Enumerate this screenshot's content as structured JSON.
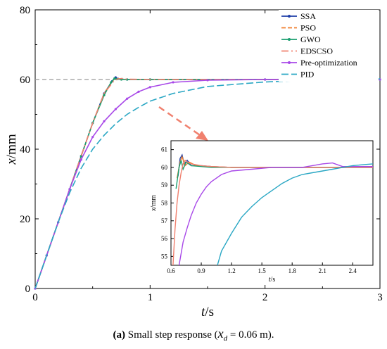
{
  "chart_data": [
    {
      "type": "line",
      "x_var": "t",
      "x_unit": "/s",
      "y_var": "x",
      "y_unit": "/mm",
      "xlim": [
        0,
        3
      ],
      "ylim": [
        0,
        80
      ],
      "xticks": [
        "0",
        "1",
        "2",
        "3"
      ],
      "yticks": [
        "0",
        "20",
        "40",
        "60",
        "80"
      ],
      "reference_line": 60,
      "legend_position": "top-right",
      "series": [
        {
          "name": "SSA",
          "color": "#1f3fa8",
          "dash": "",
          "marker": true,
          "x": [
            0,
            0.1,
            0.2,
            0.3,
            0.4,
            0.5,
            0.6,
            0.67,
            0.7,
            0.72,
            0.75,
            0.8,
            1,
            2,
            3
          ],
          "y": [
            0,
            9.5,
            19,
            28.5,
            38,
            47.5,
            56,
            59.5,
            60.6,
            60.2,
            60.1,
            60,
            60,
            60,
            60
          ]
        },
        {
          "name": "PSO",
          "color": "#f07e2c",
          "dash": "6,3",
          "marker": false,
          "x": [
            0,
            0.1,
            0.2,
            0.3,
            0.4,
            0.5,
            0.6,
            0.67,
            0.7,
            0.72,
            0.75,
            0.8,
            1,
            2,
            3
          ],
          "y": [
            0,
            9.5,
            19,
            28.5,
            38,
            47.5,
            56,
            59.5,
            60.5,
            60.2,
            60.1,
            60,
            60,
            60,
            60
          ]
        },
        {
          "name": "GWO",
          "color": "#1a9e6f",
          "dash": "",
          "marker": true,
          "x": [
            0,
            0.1,
            0.2,
            0.3,
            0.4,
            0.5,
            0.6,
            0.66,
            0.69,
            0.71,
            0.75,
            0.8,
            1,
            2,
            3
          ],
          "y": [
            0,
            9.5,
            19,
            28.5,
            38,
            47.5,
            55.5,
            59.2,
            60.3,
            60.1,
            60,
            60,
            60,
            60,
            60
          ]
        },
        {
          "name": "EDSCSO",
          "color": "#f0806e",
          "dash": "10,4,2,4",
          "marker": false,
          "x": [
            0,
            0.1,
            0.2,
            0.3,
            0.4,
            0.5,
            0.6,
            0.68,
            0.72,
            0.76,
            0.8,
            1,
            2,
            3
          ],
          "y": [
            0,
            9.5,
            19,
            28.5,
            38,
            47.5,
            56,
            59.4,
            60.2,
            60.3,
            60.1,
            60,
            60,
            60
          ]
        },
        {
          "name": "Pre-optimization",
          "color": "#a848e8",
          "dash": "",
          "marker": true,
          "x": [
            0,
            0.1,
            0.2,
            0.3,
            0.4,
            0.5,
            0.6,
            0.7,
            0.8,
            0.9,
            1,
            1.2,
            1.5,
            2,
            2.5,
            3
          ],
          "y": [
            0,
            9.5,
            19,
            28.5,
            37,
            43.5,
            48,
            51.5,
            54.5,
            56.5,
            57.8,
            59.2,
            59.8,
            60,
            60.2,
            60
          ]
        },
        {
          "name": "PID",
          "color": "#2aa7c4",
          "dash": "10,4",
          "marker": false,
          "x": [
            0,
            0.1,
            0.2,
            0.3,
            0.4,
            0.5,
            0.6,
            0.7,
            0.8,
            0.9,
            1,
            1.2,
            1.5,
            2,
            2.5,
            3
          ],
          "y": [
            0,
            9.5,
            19,
            27.5,
            34.5,
            40,
            44,
            47.3,
            50,
            52,
            53.8,
            56,
            58,
            59.3,
            59.9,
            60.2
          ]
        }
      ]
    },
    {
      "type": "line",
      "role": "inset zoom",
      "x_var": "t",
      "x_unit": "/s",
      "y_var": "x",
      "y_unit": "/mm",
      "xlim": [
        0.6,
        2.6
      ],
      "ylim": [
        54.5,
        61.5
      ],
      "xticks": [
        "0.6",
        "0.9",
        "1.2",
        "1.5",
        "1.8",
        "2.1",
        "2.4"
      ],
      "yticks": [
        "55",
        "56",
        "57",
        "58",
        "59",
        "60",
        "61"
      ],
      "series": [
        {
          "name": "SSA",
          "color": "#1f3fa8",
          "x": [
            0.67,
            0.69,
            0.71,
            0.73,
            0.76,
            0.8,
            0.9,
            1.0,
            1.2,
            1.5,
            2.0,
            2.6
          ],
          "y": [
            59.5,
            60.5,
            60.7,
            60.2,
            60.4,
            60.1,
            60.1,
            60.05,
            60,
            60,
            60,
            60
          ]
        },
        {
          "name": "PSO",
          "color": "#f07e2c",
          "x": [
            0.66,
            0.69,
            0.71,
            0.74,
            0.78,
            0.85,
            1.0,
            1.2,
            1.5,
            2.0,
            2.6
          ],
          "y": [
            59.4,
            60.3,
            60.6,
            60.1,
            60.3,
            60.1,
            60.05,
            60,
            60,
            60,
            60
          ]
        },
        {
          "name": "GWO",
          "color": "#1a9e6f",
          "x": [
            0.65,
            0.68,
            0.7,
            0.72,
            0.75,
            0.8,
            0.9,
            1.0,
            1.2,
            1.5,
            2.0,
            2.6
          ],
          "y": [
            58.8,
            60,
            60.4,
            59.9,
            60.3,
            60.1,
            60.05,
            60,
            60,
            60,
            60,
            60
          ]
        },
        {
          "name": "EDSCSO",
          "color": "#f0806e",
          "x": [
            0.62,
            0.64,
            0.66,
            0.68,
            0.7,
            0.72,
            0.74,
            0.76,
            0.8,
            0.9,
            1.0,
            1.2,
            1.5,
            2.0,
            2.6
          ],
          "y": [
            54.5,
            56.5,
            58,
            59,
            59.7,
            60.2,
            60.4,
            60.3,
            60.2,
            60.1,
            60.05,
            60,
            60,
            60,
            60
          ]
        },
        {
          "name": "Pre-optimization",
          "color": "#a848e8",
          "x": [
            0.68,
            0.72,
            0.76,
            0.8,
            0.85,
            0.9,
            0.95,
            1.0,
            1.1,
            1.2,
            1.4,
            1.6,
            1.9,
            2.1,
            2.2,
            2.3,
            2.6
          ],
          "y": [
            54.5,
            55.8,
            56.6,
            57.3,
            58,
            58.5,
            58.9,
            59.2,
            59.6,
            59.8,
            59.9,
            60,
            60,
            60.2,
            60.25,
            60.05,
            60.05
          ]
        },
        {
          "name": "PID",
          "color": "#2aa7c4",
          "x": [
            1.06,
            1.1,
            1.2,
            1.3,
            1.4,
            1.5,
            1.6,
            1.7,
            1.8,
            1.9,
            2.0,
            2.1,
            2.2,
            2.3,
            2.4,
            2.5,
            2.6
          ],
          "y": [
            54.5,
            55.3,
            56.3,
            57.2,
            57.8,
            58.3,
            58.7,
            59.1,
            59.4,
            59.6,
            59.7,
            59.8,
            59.9,
            60,
            60.1,
            60.15,
            60.2
          ]
        }
      ]
    }
  ],
  "caption": {
    "tag": "(a)",
    "text_before": " Small step response (",
    "var": "x",
    "sub": "d",
    "text_after": " = 0.06 m)."
  }
}
